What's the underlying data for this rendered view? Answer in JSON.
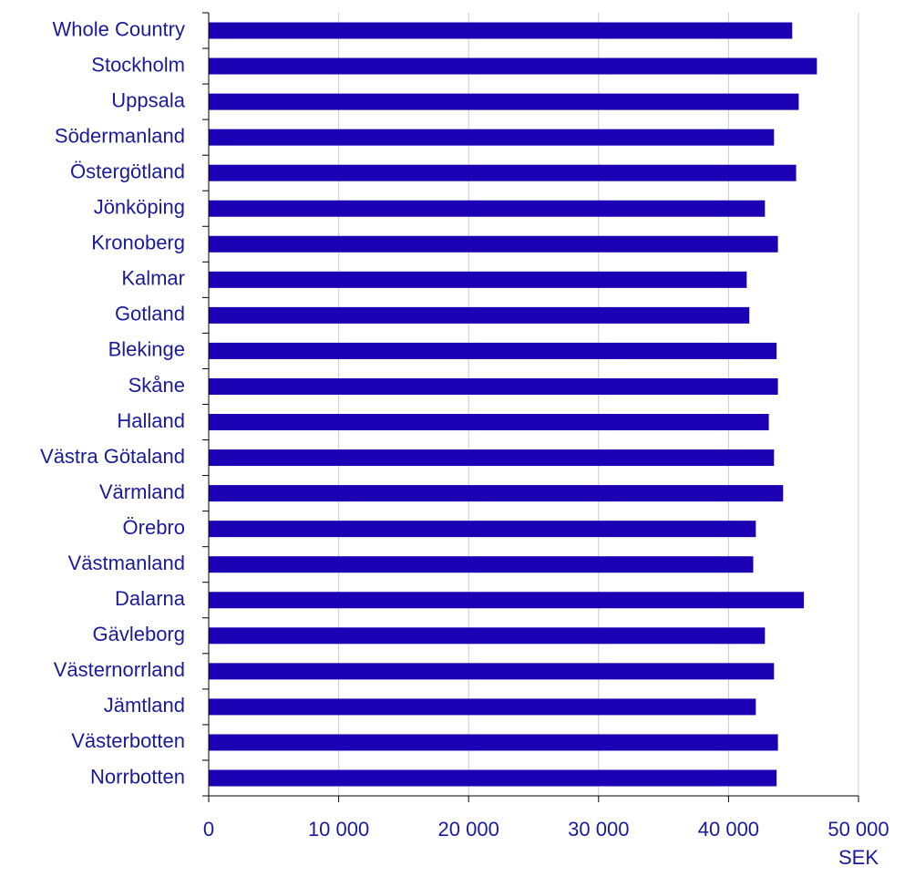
{
  "chart_data": {
    "type": "barh",
    "categories": [
      "Whole Country",
      "Stockholm",
      "Uppsala",
      "Södermanland",
      "Östergötland",
      "Jönköping",
      "Kronoberg",
      "Kalmar",
      "Gotland",
      "Blekinge",
      "Skåne",
      "Halland",
      "Västra Götaland",
      "Värmland",
      "Örebro",
      "Västmanland",
      "Dalarna",
      "Gävleborg",
      "Västernorrland",
      "Jämtland",
      "Västerbotten",
      "Norrbotten"
    ],
    "values": [
      44900,
      46800,
      45400,
      43500,
      45200,
      42800,
      43800,
      41400,
      41600,
      43700,
      43800,
      43100,
      43500,
      44200,
      42100,
      41900,
      45800,
      42800,
      43500,
      42100,
      43800,
      43700
    ],
    "color": "#1c00b4",
    "xlabel": "SEK",
    "xlim": [
      0,
      50000
    ],
    "xticks": [
      0,
      {
        "value": 10000,
        "label": "10 000"
      },
      {
        "value": 20000,
        "label": "20 000"
      },
      {
        "value": 30000,
        "label": "30 000"
      },
      {
        "value": 40000,
        "label": "40 000"
      },
      {
        "value": 50000,
        "label": "50 000"
      }
    ],
    "grid": true
  }
}
